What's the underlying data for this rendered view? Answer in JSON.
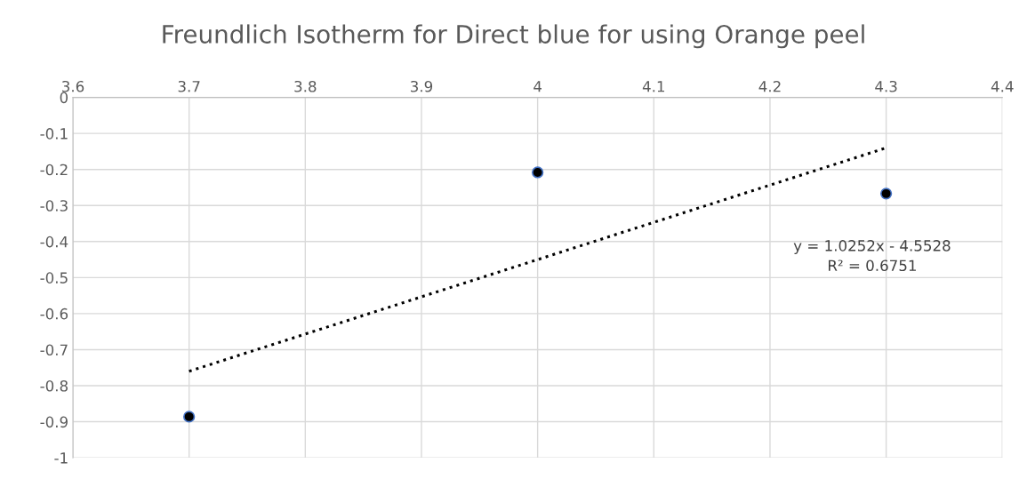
{
  "chart_data": {
    "type": "scatter",
    "title": "Freundlich Isotherm for Direct blue for using Orange peel",
    "series": [
      {
        "x": [
          3.7,
          4.0,
          4.3
        ],
        "values": [
          -0.886,
          -0.208,
          -0.267
        ],
        "color": "#000000",
        "marker": "circle"
      },
      {
        "type": "line",
        "x": [
          3.7,
          4.3
        ],
        "values": [
          -0.76,
          -0.14
        ],
        "color": "#000000",
        "line_style": "dotted",
        "marker": "none"
      }
    ],
    "xlim": [
      3.6,
      4.4
    ],
    "xticks": [
      3.6,
      3.7,
      3.8,
      3.9,
      4,
      4.1,
      4.2,
      4.3,
      4.4
    ],
    "ylim": [
      -1,
      0
    ],
    "yticks": [
      0,
      -0.1,
      -0.2,
      -0.3,
      -0.4,
      -0.5,
      -0.6,
      -0.7,
      -0.8,
      -0.9,
      -1
    ],
    "grid": true,
    "legend": false,
    "annotations": [
      "y = 1.0252x - 4.5528",
      "R² = 0.6751"
    ]
  }
}
